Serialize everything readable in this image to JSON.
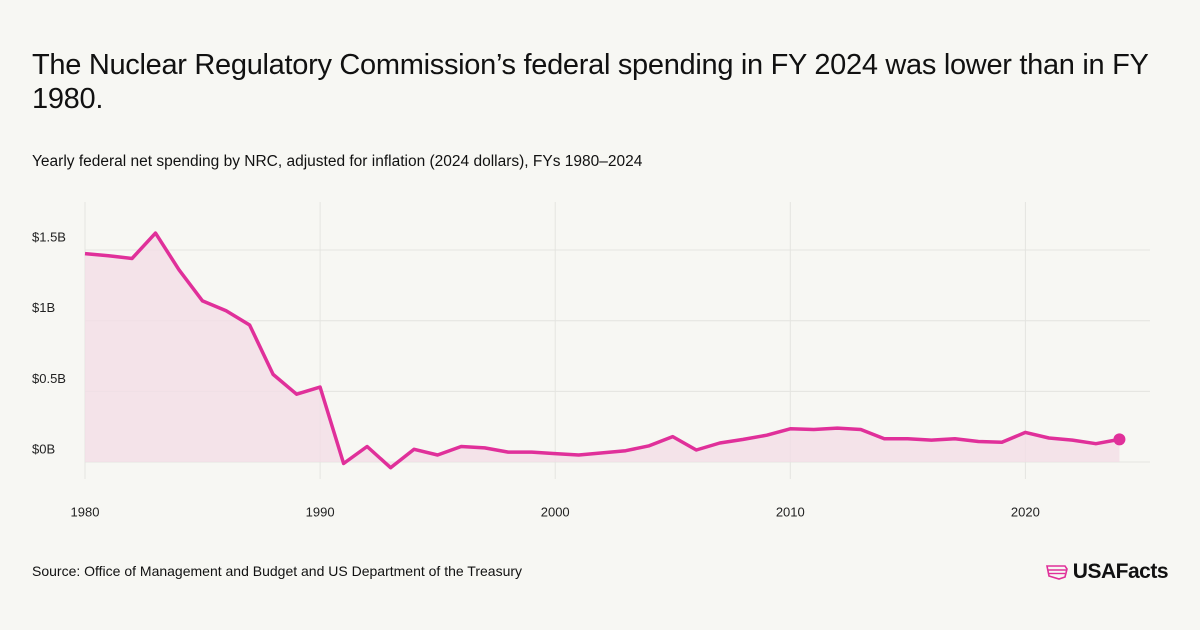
{
  "chart_data": {
    "type": "line",
    "title": "The Nuclear Regulatory Commission’s federal spending in FY 2024 was lower than in FY 1980.",
    "subtitle": "Yearly federal net spending by NRC, adjusted for inflation (2024 dollars), FYs 1980–2024",
    "source": "Source: Office of Management and Budget and US Department of the Treasury",
    "logo": "USAFacts",
    "color": "#e0309a",
    "area_color": "#f3dde6",
    "grid": true,
    "x": [
      1980,
      1981,
      1982,
      1983,
      1984,
      1985,
      1986,
      1987,
      1988,
      1989,
      1990,
      1991,
      1992,
      1993,
      1994,
      1995,
      1996,
      1997,
      1998,
      1999,
      2000,
      2001,
      2002,
      2003,
      2004,
      2005,
      2006,
      2007,
      2008,
      2009,
      2010,
      2011,
      2012,
      2013,
      2014,
      2015,
      2016,
      2017,
      2018,
      2019,
      2020,
      2021,
      2022,
      2023,
      2024
    ],
    "values": [
      1.475,
      1.46,
      1.44,
      1.62,
      1.36,
      1.14,
      1.07,
      0.97,
      0.62,
      0.48,
      0.53,
      -0.01,
      0.11,
      -0.04,
      0.09,
      0.05,
      0.11,
      0.1,
      0.07,
      0.07,
      0.06,
      0.05,
      0.065,
      0.08,
      0.115,
      0.18,
      0.085,
      0.135,
      0.16,
      0.19,
      0.235,
      0.23,
      0.24,
      0.23,
      0.165,
      0.165,
      0.155,
      0.165,
      0.145,
      0.14,
      0.21,
      0.17,
      0.155,
      0.13,
      0.16
    ],
    "xlim": [
      1980,
      2025.3
    ],
    "xticks": [
      1980,
      1990,
      2000,
      2010,
      2020
    ],
    "ylim": [
      -0.12,
      1.84
    ],
    "yticks": [
      {
        "value": 0,
        "label": "$0B"
      },
      {
        "value": 0.5,
        "label": "$0.5B"
      },
      {
        "value": 1,
        "label": "$1B"
      },
      {
        "value": 1.5,
        "label": "$1.5B"
      }
    ]
  }
}
